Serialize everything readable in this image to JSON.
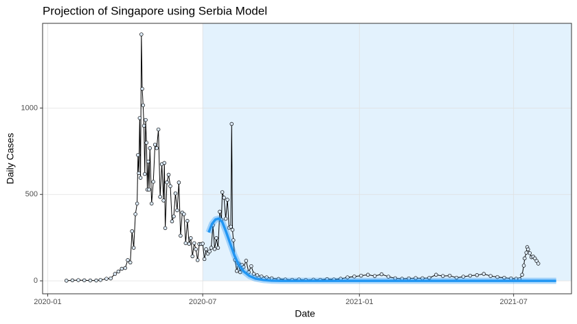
{
  "chart_data": {
    "type": "line",
    "title": "Projection of Singapore using Serbia Model",
    "x_label": "Date",
    "y_label": "Daily Cases",
    "xlim": [
      "2019-12-26",
      "2021-09-07"
    ],
    "xticks": [
      {
        "value": "2020-01-01",
        "label": "2020-01"
      },
      {
        "value": "2020-07-01",
        "label": "2020-07"
      },
      {
        "value": "2021-01-01",
        "label": "2021-01"
      },
      {
        "value": "2021-07-01",
        "label": "2021-07"
      }
    ],
    "ylim": [
      -75,
      1490
    ],
    "yticks": [
      0,
      500,
      1000
    ],
    "grid": true,
    "shaded_region": {
      "from": "2020-07-01",
      "color": "#e3f2fd"
    },
    "series": [
      {
        "color": "#000000",
        "marker_fill": "#dbe9f6",
        "x": [
          "2020-01-23",
          "2020-01-30",
          "2020-02-06",
          "2020-02-13",
          "2020-02-20",
          "2020-02-27",
          "2020-03-03",
          "2020-03-10",
          "2020-03-15",
          "2020-03-20",
          "2020-03-24",
          "2020-03-28",
          "2020-04-01",
          "2020-04-04",
          "2020-04-07",
          "2020-04-09",
          "2020-04-11",
          "2020-04-13",
          "2020-04-15",
          "2020-04-16",
          "2020-04-17",
          "2020-04-18",
          "2020-04-19",
          "2020-04-20",
          "2020-04-21",
          "2020-04-22",
          "2020-04-23",
          "2020-04-24",
          "2020-04-25",
          "2020-04-26",
          "2020-04-27",
          "2020-04-28",
          "2020-04-29",
          "2020-04-30",
          "2020-05-02",
          "2020-05-04",
          "2020-05-06",
          "2020-05-08",
          "2020-05-10",
          "2020-05-12",
          "2020-05-14",
          "2020-05-16",
          "2020-05-17",
          "2020-05-18",
          "2020-05-20",
          "2020-05-22",
          "2020-05-24",
          "2020-05-26",
          "2020-05-28",
          "2020-05-30",
          "2020-06-01",
          "2020-06-03",
          "2020-06-05",
          "2020-06-07",
          "2020-06-09",
          "2020-06-11",
          "2020-06-13",
          "2020-06-15",
          "2020-06-17",
          "2020-06-19",
          "2020-06-21",
          "2020-06-23",
          "2020-06-25",
          "2020-06-27",
          "2020-06-29",
          "2020-07-01",
          "2020-07-03",
          "2020-07-05",
          "2020-07-07",
          "2020-07-09",
          "2020-07-11",
          "2020-07-13",
          "2020-07-15",
          "2020-07-17",
          "2020-07-19",
          "2020-07-21",
          "2020-07-23",
          "2020-07-24",
          "2020-07-26",
          "2020-07-28",
          "2020-07-30",
          "2020-08-01",
          "2020-08-03",
          "2020-08-04",
          "2020-08-05",
          "2020-08-06",
          "2020-08-08",
          "2020-08-10",
          "2020-08-12",
          "2020-08-14",
          "2020-08-16",
          "2020-08-18",
          "2020-08-21",
          "2020-08-24",
          "2020-08-27",
          "2020-08-30",
          "2020-09-03",
          "2020-09-08",
          "2020-09-14",
          "2020-09-20",
          "2020-09-28",
          "2020-10-06",
          "2020-10-14",
          "2020-10-22",
          "2020-10-30",
          "2020-11-08",
          "2020-11-16",
          "2020-11-24",
          "2020-12-02",
          "2020-12-10",
          "2020-12-18",
          "2020-12-26",
          "2021-01-03",
          "2021-01-11",
          "2021-01-19",
          "2021-01-27",
          "2021-02-04",
          "2021-02-12",
          "2021-02-20",
          "2021-02-28",
          "2021-03-08",
          "2021-03-16",
          "2021-03-24",
          "2021-04-01",
          "2021-04-09",
          "2021-04-17",
          "2021-04-25",
          "2021-05-03",
          "2021-05-11",
          "2021-05-19",
          "2021-05-27",
          "2021-06-04",
          "2021-06-12",
          "2021-06-20",
          "2021-06-28",
          "2021-07-04",
          "2021-07-08",
          "2021-07-11",
          "2021-07-13",
          "2021-07-14",
          "2021-07-16",
          "2021-07-17",
          "2021-07-18",
          "2021-07-20",
          "2021-07-22",
          "2021-07-24",
          "2021-07-26",
          "2021-07-28",
          "2021-07-30"
        ],
        "values": [
          1,
          3,
          4,
          3,
          2,
          2,
          5,
          12,
          14,
          40,
          54,
          70,
          74,
          120,
          106,
          287,
          191,
          386,
          447,
          728,
          623,
          942,
          596,
          1426,
          1111,
          1016,
          897,
          618,
          931,
          799,
          528,
          690,
          528,
          768,
          447,
          573,
          788,
          768,
          876,
          486,
          675,
          465,
          682,
          305,
          570,
          614,
          548,
          344,
          373,
          506,
          408,
          569,
          261,
          395,
          386,
          218,
          347,
          214,
          247,
          142,
          218,
          183,
          120,
          213,
          213,
          215,
          126,
          183,
          157,
          170,
          191,
          322,
          184,
          247,
          191,
          400,
          354,
          513,
          481,
          359,
          469,
          307,
          313,
          908,
          295,
          235,
          121,
          57,
          100,
          50,
          93,
          80,
          116,
          50,
          85,
          40,
          32,
          25,
          20,
          15,
          11,
          8,
          6,
          8,
          5,
          7,
          6,
          10,
          8,
          12,
          20,
          25,
          30,
          35,
          28,
          38,
          24,
          15,
          12,
          14,
          16,
          15,
          17,
          35,
          28,
          30,
          18,
          24,
          30,
          33,
          40,
          28,
          22,
          18,
          14,
          12,
          10,
          35,
          88,
          130,
          163,
          195,
          182,
          160,
          137,
          140,
          130,
          115,
          100
        ]
      },
      {
        "color": "#2196f3",
        "projection": true,
        "x": [
          "2020-07-08",
          "2020-07-12",
          "2020-07-16",
          "2020-07-20",
          "2020-07-24",
          "2020-07-28",
          "2020-08-02",
          "2020-08-07",
          "2020-08-12",
          "2020-08-18",
          "2020-08-25",
          "2020-09-01",
          "2020-09-10",
          "2020-09-20",
          "2020-10-01",
          "2021-08-20"
        ],
        "values": [
          280,
          330,
          355,
          360,
          340,
          290,
          220,
          150,
          95,
          55,
          28,
          13,
          5,
          1,
          0,
          0
        ]
      }
    ]
  }
}
